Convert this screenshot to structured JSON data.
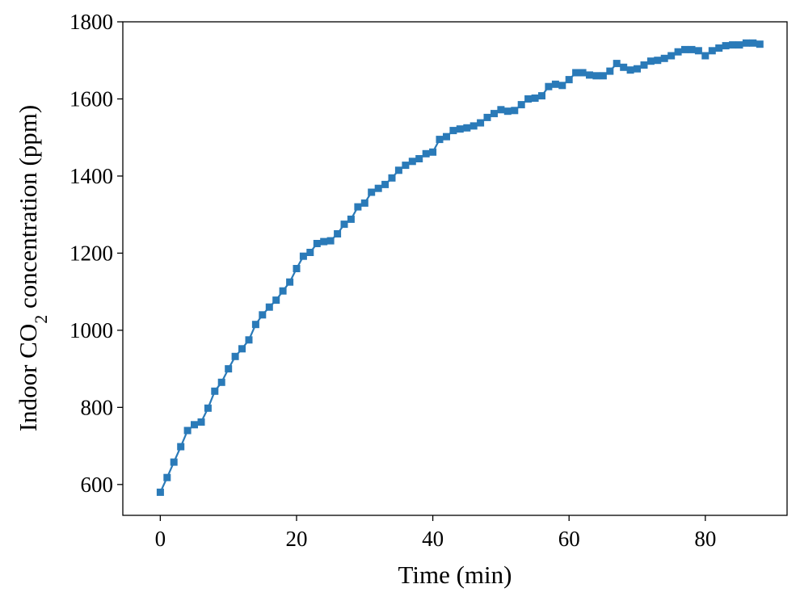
{
  "chart_data": {
    "type": "line",
    "xlabel": "Time (min)",
    "ylabel_parts": {
      "pre": "Indoor CO",
      "sub": "2",
      "post": " concentration (ppm)"
    },
    "xlim": [
      -5.5,
      92
    ],
    "ylim": [
      520,
      1800
    ],
    "xticks": [
      0,
      20,
      40,
      60,
      80
    ],
    "yticks": [
      600,
      800,
      1000,
      1200,
      1400,
      1600,
      1800
    ],
    "grid": false,
    "marker": "square",
    "color": "#2a7ab8",
    "series": [
      {
        "x": [
          0,
          1,
          2,
          3,
          4,
          5,
          6,
          7,
          8,
          9,
          10,
          11,
          12,
          13,
          14,
          15,
          16,
          17,
          18,
          19,
          20,
          21,
          22,
          23,
          24,
          25,
          26,
          27,
          28,
          29,
          30,
          31,
          32,
          33,
          34,
          35,
          36,
          37,
          38,
          39,
          40,
          41,
          42,
          43,
          44,
          45,
          46,
          47,
          48,
          49,
          50,
          51,
          52,
          53,
          54,
          55,
          56,
          57,
          58,
          59,
          60,
          61,
          62,
          63,
          64,
          65,
          66,
          67,
          68,
          69,
          70,
          71,
          72,
          73,
          74,
          75,
          76,
          77,
          78,
          79,
          80,
          81,
          82,
          83,
          84,
          85,
          86,
          87,
          88
        ],
        "y": [
          580,
          618,
          658,
          698,
          740,
          755,
          762,
          798,
          842,
          865,
          900,
          932,
          952,
          975,
          1015,
          1040,
          1060,
          1078,
          1102,
          1125,
          1160,
          1192,
          1202,
          1225,
          1230,
          1232,
          1250,
          1275,
          1288,
          1320,
          1330,
          1358,
          1368,
          1378,
          1395,
          1415,
          1428,
          1438,
          1445,
          1458,
          1462,
          1495,
          1502,
          1518,
          1522,
          1525,
          1530,
          1538,
          1552,
          1562,
          1572,
          1568,
          1570,
          1585,
          1600,
          1602,
          1608,
          1632,
          1638,
          1635,
          1650,
          1668,
          1668,
          1662,
          1660,
          1660,
          1672,
          1692,
          1682,
          1675,
          1678,
          1688,
          1698,
          1700,
          1705,
          1712,
          1722,
          1728,
          1728,
          1725,
          1712,
          1725,
          1732,
          1738,
          1740,
          1740,
          1745,
          1745,
          1742
        ]
      }
    ]
  }
}
